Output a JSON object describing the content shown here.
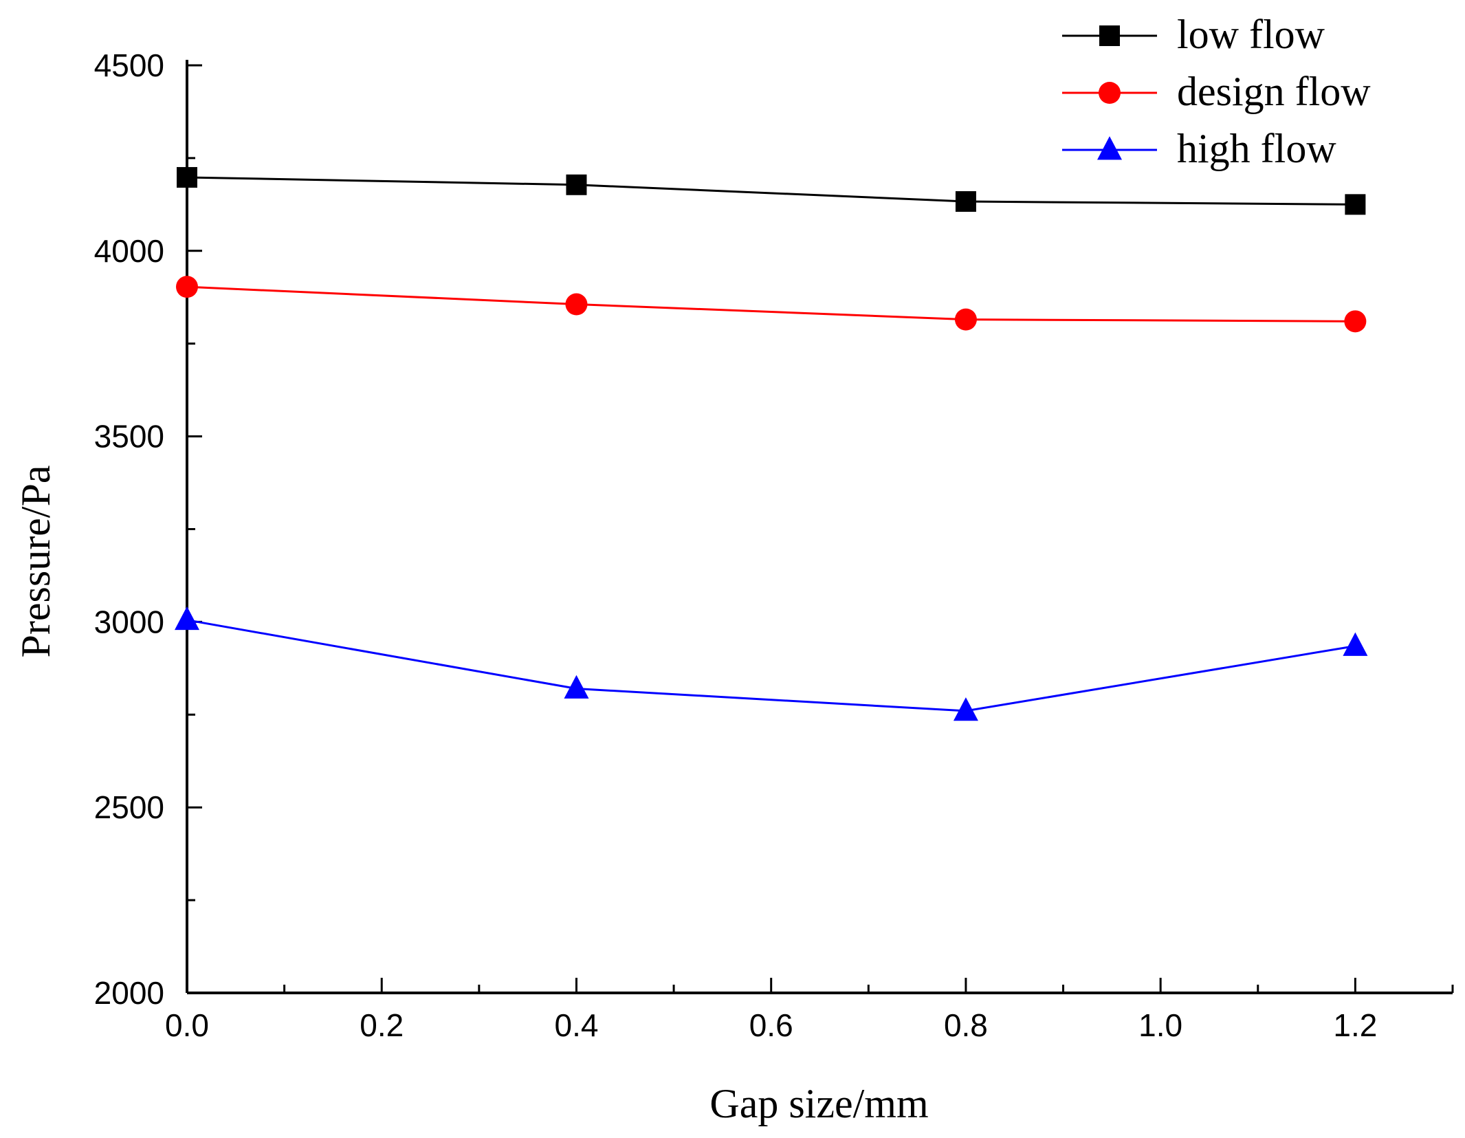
{
  "chart_data": {
    "type": "line",
    "title": "",
    "xlabel": "Gap size/mm",
    "ylabel": "Pressure/Pa",
    "xlim": [
      0.0,
      1.3
    ],
    "ylim": [
      2000,
      4500
    ],
    "x_ticks": [
      0.0,
      0.2,
      0.4,
      0.6,
      0.8,
      1.0,
      1.2
    ],
    "x_tick_labels": [
      "0.0",
      "0.2",
      "0.4",
      "0.6",
      "0.8",
      "1.0",
      "1.2"
    ],
    "y_ticks": [
      2000,
      2500,
      3000,
      3500,
      4000,
      4500
    ],
    "y_tick_labels": [
      "2000",
      "2500",
      "3000",
      "3500",
      "4000",
      "4500"
    ],
    "grid": false,
    "legend_position": "top-right",
    "x": [
      0.0,
      0.4,
      0.8,
      1.2
    ],
    "series": [
      {
        "name": "low flow",
        "marker": "square",
        "color": "#000000",
        "values": [
          4198,
          4178,
          4133,
          4125
        ]
      },
      {
        "name": "design flow",
        "marker": "circle",
        "color": "#ff0000",
        "values": [
          3903,
          3856,
          3815,
          3810
        ]
      },
      {
        "name": "high flow",
        "marker": "triangle",
        "color": "#0000ff",
        "values": [
          3005,
          2820,
          2760,
          2935
        ]
      }
    ]
  }
}
